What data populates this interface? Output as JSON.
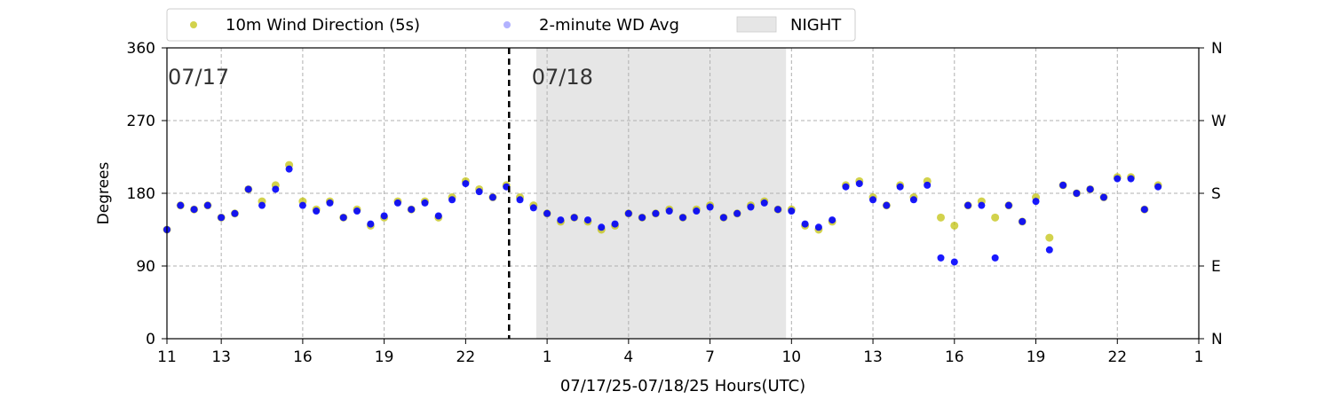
{
  "chart_data": {
    "type": "scatter",
    "title": "",
    "xlabel": "07/17/25-07/18/25  Hours(UTC)",
    "ylabel": "Degrees",
    "x_unit": "hours since 07/17 00:00 UTC",
    "xlim": [
      11,
      49
    ],
    "ylim": [
      0,
      360
    ],
    "x_ticks": [
      {
        "value": 11,
        "label": "11"
      },
      {
        "value": 13,
        "label": "13"
      },
      {
        "value": 16,
        "label": "16"
      },
      {
        "value": 19,
        "label": "19"
      },
      {
        "value": 22,
        "label": "22"
      },
      {
        "value": 25,
        "label": "1"
      },
      {
        "value": 28,
        "label": "4"
      },
      {
        "value": 31,
        "label": "7"
      },
      {
        "value": 34,
        "label": "10"
      },
      {
        "value": 37,
        "label": "13"
      },
      {
        "value": 40,
        "label": "16"
      },
      {
        "value": 43,
        "label": "19"
      },
      {
        "value": 46,
        "label": "22"
      },
      {
        "value": 49,
        "label": "1"
      }
    ],
    "y_ticks": [
      0,
      90,
      180,
      270,
      360
    ],
    "y2_ticks": [
      {
        "value": 0,
        "label": "N"
      },
      {
        "value": 90,
        "label": "E"
      },
      {
        "value": 180,
        "label": "S"
      },
      {
        "value": 270,
        "label": "W"
      },
      {
        "value": 360,
        "label": "N"
      }
    ],
    "grid": true,
    "legend_position": "top-left, above plot",
    "day_divider": {
      "x": 23.6
    },
    "day_labels": [
      {
        "x": 11,
        "text": "07/17"
      },
      {
        "x": 24.4,
        "text": "07/18"
      }
    ],
    "night": {
      "start": 24.6,
      "end": 33.8,
      "label": "NIGHT",
      "color": "#e6e6e6"
    },
    "series": [
      {
        "name": "10m Wind Direction (5s)",
        "color": "#bfbf00",
        "x": [
          11.0,
          11.5,
          12.0,
          12.5,
          13.0,
          13.5,
          14.0,
          14.5,
          15.0,
          15.5,
          16.0,
          16.5,
          17.0,
          17.5,
          18.0,
          18.5,
          19.0,
          19.5,
          20.0,
          20.5,
          21.0,
          21.5,
          22.0,
          22.5,
          23.0,
          23.5,
          24.0,
          24.5,
          25.0,
          25.5,
          26.0,
          26.5,
          27.0,
          27.5,
          28.0,
          28.5,
          29.0,
          29.5,
          30.0,
          30.5,
          31.0,
          31.5,
          32.0,
          32.5,
          33.0,
          33.5,
          34.0,
          34.5,
          35.0,
          35.5,
          36.0,
          36.5,
          37.0,
          37.5,
          38.0,
          38.5,
          39.0,
          39.5,
          40.0,
          40.5,
          41.0,
          41.5,
          42.0,
          42.5,
          43.0,
          43.5,
          44.0,
          44.5,
          45.0,
          45.5,
          46.0,
          46.5,
          47.0,
          47.5
        ],
        "y": [
          135,
          165,
          160,
          165,
          150,
          155,
          185,
          170,
          190,
          215,
          170,
          160,
          170,
          150,
          160,
          140,
          150,
          170,
          160,
          170,
          150,
          175,
          195,
          185,
          175,
          190,
          175,
          165,
          155,
          145,
          150,
          145,
          135,
          140,
          155,
          150,
          155,
          160,
          150,
          160,
          165,
          150,
          155,
          165,
          170,
          160,
          160,
          140,
          135,
          145,
          190,
          195,
          175,
          165,
          190,
          175,
          195,
          150,
          140,
          165,
          170,
          150,
          165,
          145,
          175,
          125,
          190,
          180,
          185,
          175,
          200,
          200,
          160,
          190
        ]
      },
      {
        "name": "2-minute WD Avg",
        "color": "#0000ff",
        "x": [
          11.0,
          11.5,
          12.0,
          12.5,
          13.0,
          13.5,
          14.0,
          14.5,
          15.0,
          15.5,
          16.0,
          16.5,
          17.0,
          17.5,
          18.0,
          18.5,
          19.0,
          19.5,
          20.0,
          20.5,
          21.0,
          21.5,
          22.0,
          22.5,
          23.0,
          23.5,
          24.0,
          24.5,
          25.0,
          25.5,
          26.0,
          26.5,
          27.0,
          27.5,
          28.0,
          28.5,
          29.0,
          29.5,
          30.0,
          30.5,
          31.0,
          31.5,
          32.0,
          32.5,
          33.0,
          33.5,
          34.0,
          34.5,
          35.0,
          35.5,
          36.0,
          36.5,
          37.0,
          37.5,
          38.0,
          38.5,
          39.0,
          39.5,
          40.0,
          40.5,
          41.0,
          41.5,
          42.0,
          42.5,
          43.0,
          43.5,
          44.0,
          44.5,
          45.0,
          45.5,
          46.0,
          46.5,
          47.0,
          47.5
        ],
        "y": [
          135,
          165,
          160,
          165,
          150,
          155,
          185,
          165,
          185,
          210,
          165,
          158,
          168,
          150,
          158,
          142,
          152,
          168,
          160,
          168,
          152,
          172,
          192,
          182,
          175,
          188,
          172,
          162,
          155,
          147,
          150,
          147,
          138,
          142,
          155,
          150,
          155,
          158,
          150,
          158,
          163,
          150,
          155,
          163,
          168,
          160,
          158,
          142,
          138,
          147,
          188,
          192,
          172,
          165,
          188,
          172,
          190,
          100,
          95,
          165,
          165,
          100,
          165,
          145,
          170,
          110,
          190,
          180,
          185,
          175,
          198,
          198,
          160,
          188
        ]
      }
    ]
  }
}
